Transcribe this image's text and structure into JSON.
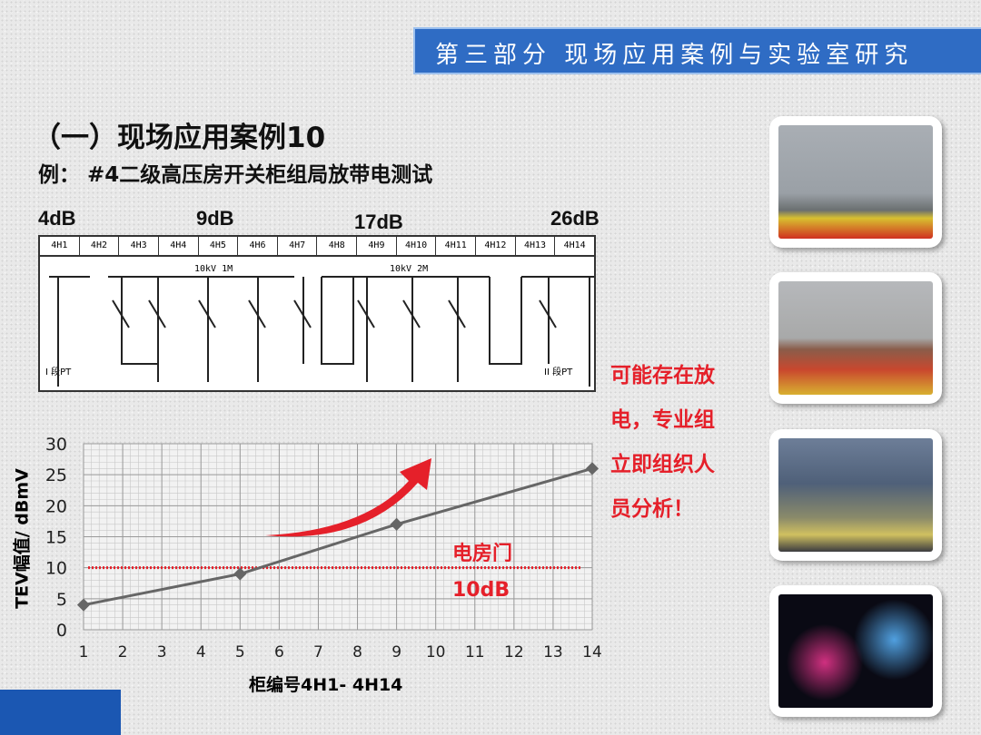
{
  "banner": {
    "title": "第三部分 现场应用案例与实验室研究"
  },
  "heading": {
    "title": "（一）现场应用案例10",
    "subtitle": "例： #4二级高压房开关柜组局放带电测试"
  },
  "db_labels": [
    "4dB",
    "9dB",
    "17dB",
    "26dB"
  ],
  "diagram": {
    "cabinets": [
      "4H1",
      "4H2",
      "4H3",
      "4H4",
      "4H5",
      "4H6",
      "4H7",
      "4H8",
      "4H9",
      "4H10",
      "4H11",
      "4H12",
      "4H13",
      "4H14"
    ],
    "bus1": "10kV 1M",
    "bus2": "10kV 2M",
    "pt1": "I 段PT",
    "pt2": "II 段PT"
  },
  "conclusion": [
    "可能存在放",
    "电，专业组",
    "立即组织人",
    "员分析！"
  ],
  "chart_data": {
    "type": "line",
    "x": [
      1,
      5,
      9,
      14
    ],
    "values": [
      4,
      9,
      17,
      26
    ],
    "xticks": [
      1,
      2,
      3,
      4,
      5,
      6,
      7,
      8,
      9,
      10,
      11,
      12,
      13,
      14
    ],
    "yticks": [
      0,
      5,
      10,
      15,
      20,
      25,
      30
    ],
    "xlim": [
      1,
      14
    ],
    "ylim": [
      0,
      30
    ],
    "xlabel": "柜编号4H1-  4H14",
    "ylabel": "TEV幅值/ dBmV",
    "grid": true,
    "reference_line": {
      "value": 10,
      "color": "#e5202a",
      "style": "dotted"
    },
    "annotations": [
      "电房门",
      "10dB"
    ],
    "line_color": "#666666"
  },
  "colors": {
    "banner": "#2f6cc4",
    "accent": "#e5202a"
  }
}
